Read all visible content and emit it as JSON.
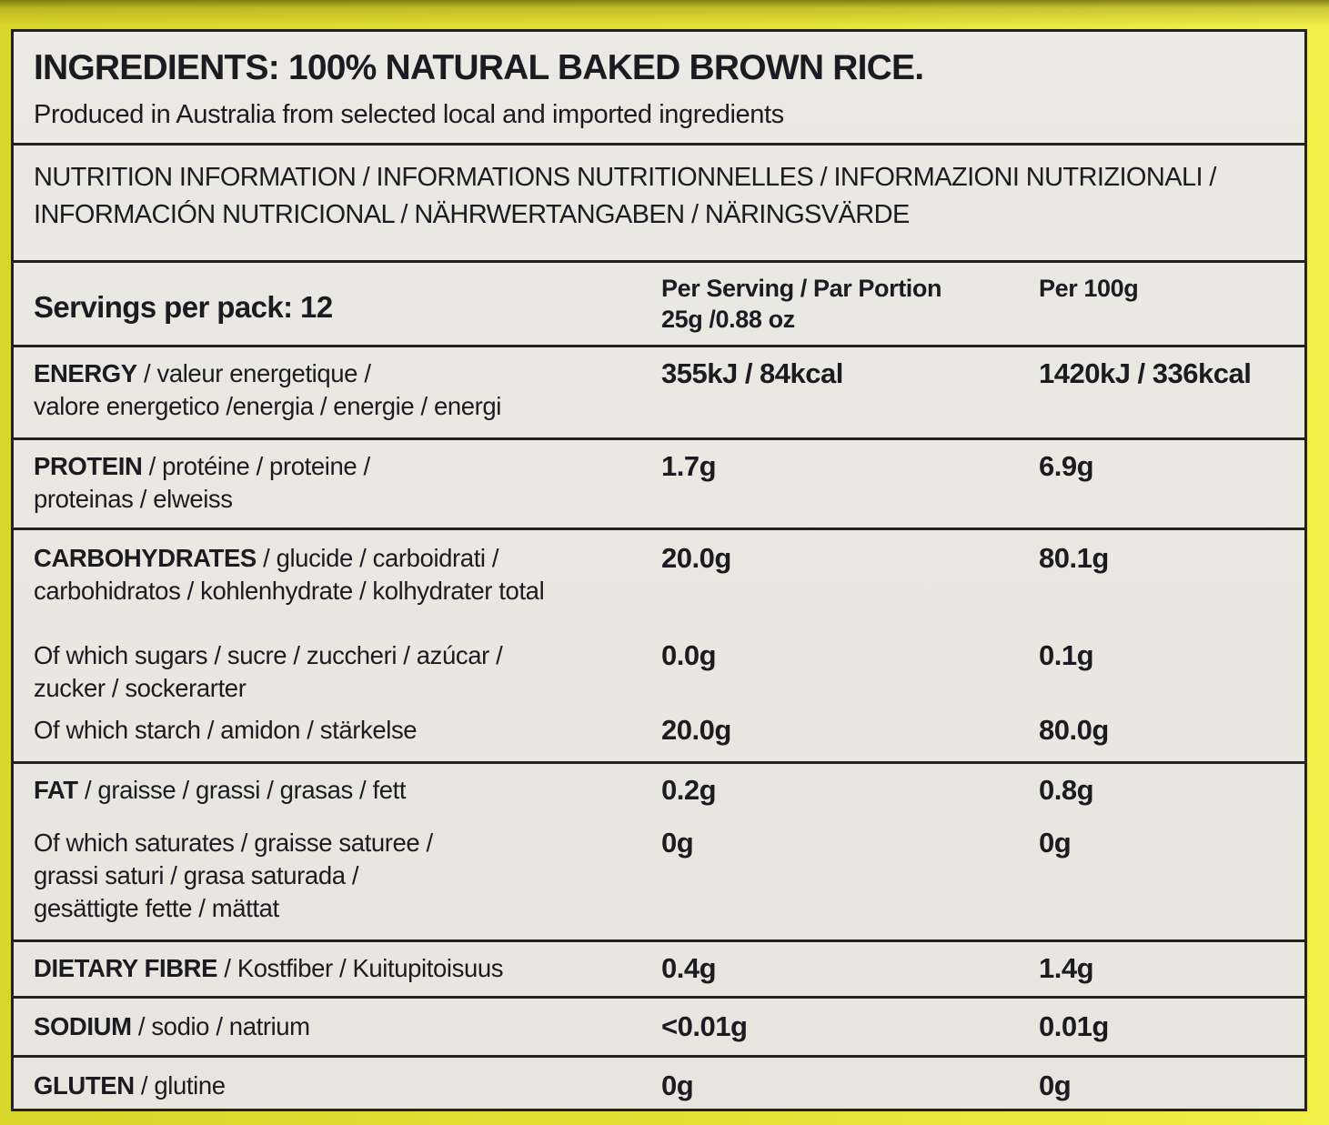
{
  "ingredients": {
    "title": "INGREDIENTS: 100% NATURAL BAKED BROWN RICE.",
    "subtitle": "Produced in Australia from selected local and imported ingredients"
  },
  "nutrition_header": {
    "line1": "NUTRITION INFORMATION / INFORMATIONS NUTRITIONNELLES / INFORMAZIONI NUTRIZIONALI /",
    "line2": "INFORMACIÓN NUTRICIONAL / NÄHRWERTANGABEN / NÄRINGSVÄRDE"
  },
  "servings": {
    "label": "Servings per pack: 12",
    "col_per_serving_line1": "Per Serving / Par Portion",
    "col_per_serving_line2": "25g /0.88 oz",
    "col_per_100g": "Per 100g"
  },
  "table": {
    "rows": [
      {
        "id": "energy",
        "strong": "ENERGY",
        "plain": " / valeur energetique /",
        "line2": "valore energetico /energia / energie / energi",
        "serving": "355kJ / 84kcal",
        "per100": "1420kJ / 336kcal"
      },
      {
        "id": "protein",
        "strong": "PROTEIN",
        "plain": " / protéine / proteine /",
        "line2": "proteinas / elweiss",
        "serving": "1.7g",
        "per100": "6.9g"
      },
      {
        "id": "carbohydrates",
        "strong": "CARBOHYDRATES",
        "plain": " / glucide / carboidrati /",
        "line2": "carbohidratos / kohlenhydrate / kolhydrater total",
        "serving": "20.0g",
        "per100": "80.1g"
      },
      {
        "id": "sugars",
        "strong": "",
        "plain": "Of which sugars / sucre / zuccheri / azúcar /",
        "line2": "zucker / sockerarter",
        "serving": "0.0g",
        "per100": "0.1g"
      },
      {
        "id": "starch",
        "strong": "",
        "plain": "Of which starch / amidon / stärkelse",
        "serving": "20.0g",
        "per100": "80.0g"
      },
      {
        "id": "fat",
        "strong": "FAT",
        "plain": " / graisse / grassi / grasas / fett",
        "serving": "0.2g",
        "per100": "0.8g"
      },
      {
        "id": "saturates",
        "strong": "",
        "plain": "Of which saturates / graisse saturee /",
        "line2": "grassi saturi / grasa saturada /",
        "line3": "gesättigte fette / mättat",
        "serving": "0g",
        "per100": "0g"
      },
      {
        "id": "dietary_fibre",
        "strong": "DIETARY FIBRE",
        "plain": " / Kostfiber / Kuitupitoisuus",
        "serving": "0.4g",
        "per100": "1.4g"
      },
      {
        "id": "sodium",
        "strong": "SODIUM",
        "plain": " / sodio / natrium",
        "serving": "<0.01g",
        "per100": "0.01g"
      },
      {
        "id": "gluten",
        "strong": "GLUTEN",
        "plain": " / glutine",
        "serving": "0g",
        "per100": "0g"
      }
    ]
  },
  "colors": {
    "package_yellow": "#e4e135",
    "label_background": "#e9e7e0",
    "ink": "#1c1b22",
    "border_black": "#23221d"
  }
}
